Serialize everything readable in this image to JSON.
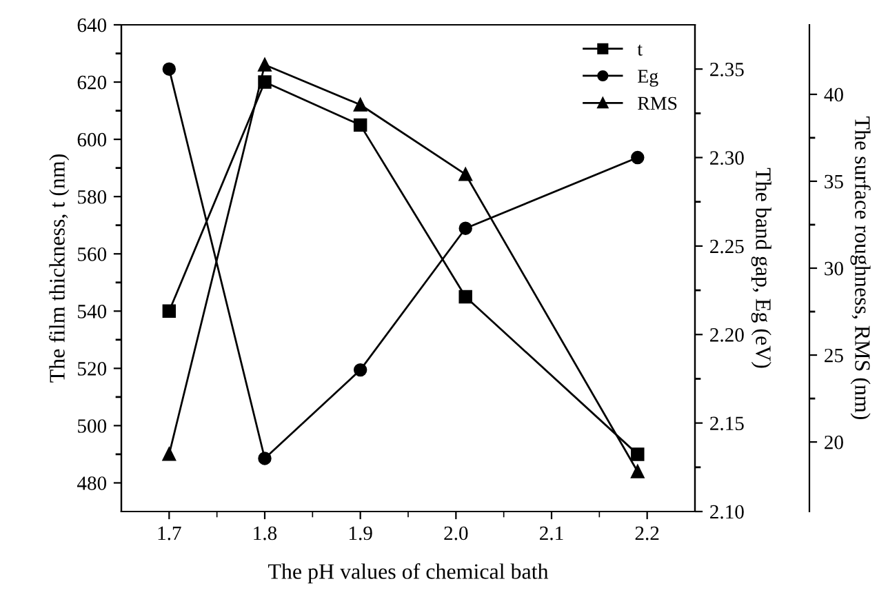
{
  "chart_data": {
    "type": "line",
    "xlabel": "The pH values of chemical bath",
    "ylabel": "The film thickness, t (nm)",
    "y2label": "The band gap, Eg (eV)",
    "y3label": "The surface roughness, RMS (nm)",
    "x": [
      1.7,
      1.8,
      1.9,
      2.01,
      2.19
    ],
    "series": [
      {
        "name": "t",
        "color": "#000000",
        "marker": "square",
        "values": [
          540,
          620,
          605,
          545,
          490
        ]
      },
      {
        "name": "Eg",
        "color": "#000000",
        "marker": "circle",
        "axis": "y2",
        "values": [
          2.35,
          2.13,
          2.18,
          2.26,
          2.3
        ]
      },
      {
        "name": "RMS",
        "color": "#000000",
        "marker": "triangle",
        "axis": "y3",
        "values": [
          19.3,
          41.7,
          39.4,
          35.4,
          18.3
        ]
      }
    ],
    "xlim": [
      1.65,
      2.25
    ],
    "xticks": [
      1.7,
      1.8,
      1.9,
      {
        "value": 2.0,
        "label": "2.0"
      },
      2.1,
      2.2,
      {
        "value": 1.75,
        "label": null
      },
      {
        "value": 1.85,
        "label": null
      },
      {
        "value": 1.95,
        "label": null
      },
      {
        "value": 2.05,
        "label": null
      },
      {
        "value": 2.15,
        "label": null
      }
    ],
    "ylim": [
      470,
      640
    ],
    "yticks": [
      480,
      500,
      520,
      540,
      560,
      580,
      600,
      620,
      640,
      {
        "value": 490,
        "label": null
      },
      {
        "value": 510,
        "label": null
      },
      {
        "value": 530,
        "label": null
      },
      {
        "value": 550,
        "label": null
      },
      {
        "value": 570,
        "label": null
      },
      {
        "value": 590,
        "label": null
      },
      {
        "value": 610,
        "label": null
      },
      {
        "value": 630,
        "label": null
      }
    ],
    "y2lim": [
      2.1,
      2.375
    ],
    "y2ticks": [
      {
        "value": 2.1,
        "label": "2.10"
      },
      {
        "value": 2.15,
        "label": "2.15"
      },
      {
        "value": 2.2,
        "label": "2.20"
      },
      2.25,
      {
        "value": 2.3,
        "label": "2.30"
      },
      2.35,
      {
        "value": 2.125,
        "label": null
      },
      {
        "value": 2.175,
        "label": null
      },
      {
        "value": 2.225,
        "label": null
      },
      {
        "value": 2.275,
        "label": null
      },
      {
        "value": 2.325,
        "label": null
      }
    ],
    "y3lim": [
      16,
      44
    ],
    "y3ticks": [
      20,
      25,
      30,
      35,
      40,
      {
        "value": 22.5,
        "label": null
      },
      {
        "value": 27.5,
        "label": null
      },
      {
        "value": 32.5,
        "label": null
      },
      {
        "value": 37.5,
        "label": null
      }
    ],
    "legend": "top right",
    "grid": false,
    "line_style": "solid"
  }
}
